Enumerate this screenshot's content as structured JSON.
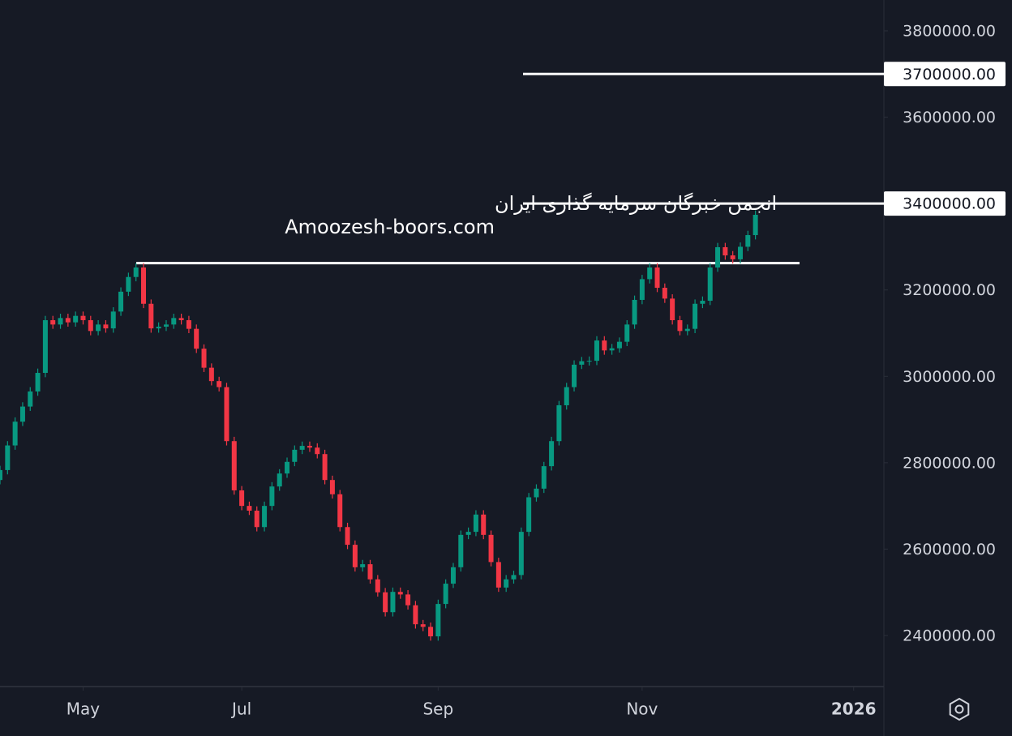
{
  "chart_data": {
    "type": "candlestick",
    "annotations": [
      "انجمن خبرگان سرمایه گذاری ایران",
      "Amoozesh-boors.com"
    ],
    "up_color": "#089981",
    "down_color": "#f23645",
    "ylim": [
      2300000,
      3850000
    ],
    "yticks": [
      {
        "value": 2400000,
        "label": "2400000.00"
      },
      {
        "value": 2600000,
        "label": "2600000.00"
      },
      {
        "value": 2800000,
        "label": "2800000.00"
      },
      {
        "value": 3000000,
        "label": "3000000.00"
      },
      {
        "value": 3200000,
        "label": "3200000.00"
      },
      {
        "value": 3600000,
        "label": "3600000.00"
      },
      {
        "value": 3800000,
        "label": "3800000.00"
      }
    ],
    "hlines": [
      {
        "value": 3700000,
        "label": "3700000.00"
      },
      {
        "value": 3400000,
        "label": "3400000.00"
      },
      {
        "value": 3262000
      }
    ],
    "xlim": [
      0,
      117
    ],
    "xticks": [
      {
        "value": 11,
        "label": "May"
      },
      {
        "value": 32,
        "label": "Jul"
      },
      {
        "value": 58,
        "label": "Sep"
      },
      {
        "value": 85,
        "label": "Nov"
      },
      {
        "value": 113,
        "label": "2026"
      }
    ],
    "ohlc": [
      [
        2760000,
        2793000,
        2750000,
        2783000
      ],
      [
        2783000,
        2850000,
        2773000,
        2840000
      ],
      [
        2840000,
        2905000,
        2830000,
        2895000
      ],
      [
        2895000,
        2940000,
        2885000,
        2930000
      ],
      [
        2930000,
        2975000,
        2920000,
        2965000
      ],
      [
        2965000,
        3018000,
        2955000,
        3008000
      ],
      [
        3008000,
        3140000,
        2998000,
        3130000
      ],
      [
        3130000,
        3140000,
        3110000,
        3120000
      ],
      [
        3120000,
        3145000,
        3110000,
        3135000
      ],
      [
        3135000,
        3145000,
        3115000,
        3125000
      ],
      [
        3125000,
        3150000,
        3115000,
        3140000
      ],
      [
        3140000,
        3150000,
        3120000,
        3130000
      ],
      [
        3130000,
        3140000,
        3095000,
        3105000
      ],
      [
        3105000,
        3130000,
        3095000,
        3120000
      ],
      [
        3120000,
        3130000,
        3101000,
        3111000
      ],
      [
        3111000,
        3160000,
        3101000,
        3150000
      ],
      [
        3150000,
        3206000,
        3140000,
        3196000
      ],
      [
        3196000,
        3240000,
        3186000,
        3230000
      ],
      [
        3230000,
        3262000,
        3220000,
        3252000
      ],
      [
        3252000,
        3262000,
        3158000,
        3168000
      ],
      [
        3168000,
        3178000,
        3101000,
        3111000
      ],
      [
        3111000,
        3125000,
        3101000,
        3115000
      ],
      [
        3115000,
        3130000,
        3105000,
        3120000
      ],
      [
        3120000,
        3145000,
        3110000,
        3135000
      ],
      [
        3135000,
        3145000,
        3120000,
        3130000
      ],
      [
        3130000,
        3140000,
        3100000,
        3110000
      ],
      [
        3110000,
        3120000,
        3054000,
        3064000
      ],
      [
        3064000,
        3074000,
        3010000,
        3020000
      ],
      [
        3020000,
        3030000,
        2979000,
        2989000
      ],
      [
        2989000,
        2999000,
        2965000,
        2975000
      ],
      [
        2975000,
        2985000,
        2840000,
        2850000
      ],
      [
        2850000,
        2860000,
        2726000,
        2736000
      ],
      [
        2736000,
        2746000,
        2690000,
        2700000
      ],
      [
        2700000,
        2710000,
        2679000,
        2689000
      ],
      [
        2689000,
        2699000,
        2641000,
        2651000
      ],
      [
        2651000,
        2710000,
        2641000,
        2700000
      ],
      [
        2700000,
        2755000,
        2690000,
        2745000
      ],
      [
        2745000,
        2785000,
        2735000,
        2775000
      ],
      [
        2775000,
        2812000,
        2765000,
        2802000
      ],
      [
        2802000,
        2840000,
        2792000,
        2830000
      ],
      [
        2830000,
        2849000,
        2820000,
        2839000
      ],
      [
        2839000,
        2849000,
        2825000,
        2835000
      ],
      [
        2835000,
        2845000,
        2810000,
        2820000
      ],
      [
        2820000,
        2830000,
        2750000,
        2760000
      ],
      [
        2760000,
        2770000,
        2717000,
        2727000
      ],
      [
        2727000,
        2737000,
        2641000,
        2651000
      ],
      [
        2651000,
        2661000,
        2600000,
        2610000
      ],
      [
        2610000,
        2620000,
        2548000,
        2558000
      ],
      [
        2558000,
        2575000,
        2548000,
        2565000
      ],
      [
        2565000,
        2575000,
        2520000,
        2530000
      ],
      [
        2530000,
        2540000,
        2490000,
        2500000
      ],
      [
        2500000,
        2510000,
        2444000,
        2454000
      ],
      [
        2454000,
        2511000,
        2444000,
        2501000
      ],
      [
        2501000,
        2511000,
        2485000,
        2495000
      ],
      [
        2495000,
        2505000,
        2460000,
        2470000
      ],
      [
        2470000,
        2480000,
        2416000,
        2426000
      ],
      [
        2426000,
        2436000,
        2410000,
        2420000
      ],
      [
        2420000,
        2430000,
        2388000,
        2398000
      ],
      [
        2398000,
        2483000,
        2388000,
        2473000
      ],
      [
        2473000,
        2530000,
        2463000,
        2520000
      ],
      [
        2520000,
        2568000,
        2510000,
        2558000
      ],
      [
        2558000,
        2643000,
        2548000,
        2633000
      ],
      [
        2633000,
        2650000,
        2623000,
        2640000
      ],
      [
        2640000,
        2690000,
        2630000,
        2680000
      ],
      [
        2680000,
        2690000,
        2623000,
        2633000
      ],
      [
        2633000,
        2643000,
        2560000,
        2570000
      ],
      [
        2570000,
        2580000,
        2501000,
        2511000
      ],
      [
        2511000,
        2540000,
        2501000,
        2530000
      ],
      [
        2530000,
        2550000,
        2520000,
        2540000
      ],
      [
        2540000,
        2650000,
        2530000,
        2640000
      ],
      [
        2640000,
        2730000,
        2630000,
        2720000
      ],
      [
        2720000,
        2750000,
        2710000,
        2740000
      ],
      [
        2740000,
        2802000,
        2730000,
        2792000
      ],
      [
        2792000,
        2860000,
        2782000,
        2850000
      ],
      [
        2850000,
        2943000,
        2840000,
        2933000
      ],
      [
        2933000,
        2985000,
        2923000,
        2975000
      ],
      [
        2975000,
        3037000,
        2965000,
        3027000
      ],
      [
        3027000,
        3045000,
        3017000,
        3035000
      ],
      [
        3035000,
        3046000,
        3025000,
        3036000
      ],
      [
        3036000,
        3093000,
        3026000,
        3083000
      ],
      [
        3083000,
        3093000,
        3050000,
        3060000
      ],
      [
        3060000,
        3075000,
        3050000,
        3065000
      ],
      [
        3065000,
        3090000,
        3055000,
        3080000
      ],
      [
        3080000,
        3130000,
        3070000,
        3120000
      ],
      [
        3120000,
        3187000,
        3110000,
        3177000
      ],
      [
        3177000,
        3235000,
        3167000,
        3225000
      ],
      [
        3225000,
        3262000,
        3215000,
        3252000
      ],
      [
        3252000,
        3262000,
        3195000,
        3205000
      ],
      [
        3205000,
        3215000,
        3170000,
        3180000
      ],
      [
        3180000,
        3190000,
        3120000,
        3130000
      ],
      [
        3130000,
        3140000,
        3095000,
        3105000
      ],
      [
        3105000,
        3120000,
        3095000,
        3110000
      ],
      [
        3110000,
        3178000,
        3100000,
        3168000
      ],
      [
        3168000,
        3185000,
        3158000,
        3175000
      ],
      [
        3175000,
        3262000,
        3165000,
        3252000
      ],
      [
        3252000,
        3309000,
        3242000,
        3299000
      ],
      [
        3299000,
        3309000,
        3270000,
        3280000
      ],
      [
        3280000,
        3290000,
        3261000,
        3271000
      ],
      [
        3271000,
        3310000,
        3261000,
        3300000
      ],
      [
        3300000,
        3337000,
        3290000,
        3327000
      ],
      [
        3327000,
        3384000,
        3317000,
        3374000
      ]
    ]
  }
}
